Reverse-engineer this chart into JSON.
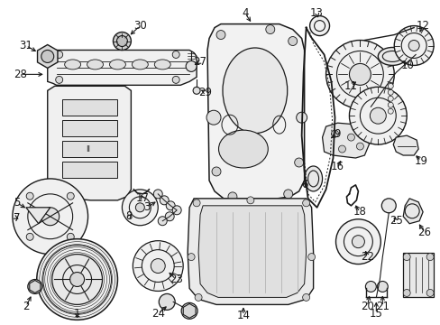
{
  "bg_color": "#ffffff",
  "fig_width": 4.89,
  "fig_height": 3.6,
  "dpi": 100,
  "line_color": "#1a1a1a",
  "label_fontsize": 8.5
}
